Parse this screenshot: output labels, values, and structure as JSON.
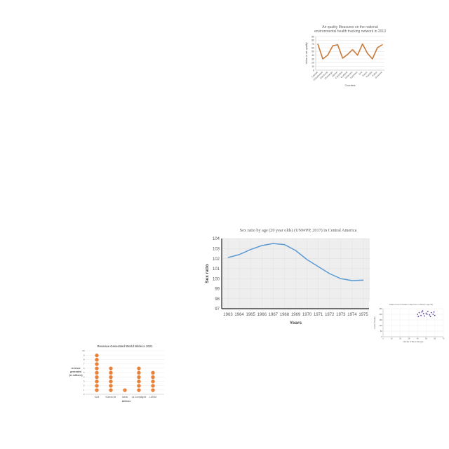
{
  "charts": {
    "air": {
      "chart_data": {
        "type": "line",
        "title_lines": [
          "Air quality Measures on the national",
          "environmental health tracking network in 2013"
        ],
        "xlabel": "Counties",
        "ylabel": "Value of air quality",
        "categories": [
          "Cayuga",
          "Chautauqua",
          "Chemung",
          "Chenango",
          "Clinton",
          "Columbia",
          "Cortland",
          "Delaware",
          "Dutchess",
          "Erie",
          "Essex",
          "Franklin",
          "Fulton",
          "Genesee"
        ],
        "values": [
          70,
          30,
          40,
          65,
          68,
          32,
          42,
          55,
          40,
          70,
          45,
          30,
          60,
          68
        ],
        "yticks": [
          "0",
          "10",
          "20",
          "30",
          "40",
          "50",
          "60",
          "70",
          "80",
          "90"
        ],
        "ylim": [
          0,
          90
        ],
        "color": "#c87a3a",
        "grid": true
      }
    },
    "sex": {
      "chart_data": {
        "type": "line",
        "title": "Sex ratio by age (20 year olds) (UNWPP, 2017) in Central America",
        "xlabel": "Years",
        "ylabel": "Sex ratio",
        "categories": [
          "1963",
          "1964",
          "1965",
          "1966",
          "1967",
          "1968",
          "1969",
          "1970",
          "1971",
          "1972",
          "1973",
          "1974",
          "1975"
        ],
        "values": [
          102.1,
          102.4,
          102.9,
          103.3,
          103.5,
          103.4,
          102.8,
          101.9,
          101.2,
          100.5,
          100.0,
          99.8,
          99.85
        ],
        "yticks": [
          "97",
          "98",
          "99",
          "100",
          "101",
          "102",
          "103",
          "104"
        ],
        "ylim": [
          97,
          104
        ],
        "color": "#5b9bd5",
        "plot_bg": "#eeeeee",
        "grid": true
      }
    },
    "scatter": {
      "chart_data": {
        "type": "scatter",
        "title": "Oldest count of bodies in files from in 2015 (in age 60)",
        "xlabel": "Number of files in file type",
        "ylabel": "Count of bodies",
        "xticks": [
          "0",
          "10",
          "20",
          "30",
          "40",
          "50",
          "60",
          "70"
        ],
        "yticks": [
          "0",
          "50",
          "100",
          "150",
          "200",
          "250"
        ],
        "xlim": [
          0,
          70
        ],
        "ylim": [
          0,
          250
        ],
        "x": [
          40,
          42,
          44,
          45,
          47,
          48,
          50,
          52,
          54,
          56,
          58,
          60,
          41,
          46,
          51,
          55,
          59
        ],
        "y": [
          200,
          215,
          190,
          220,
          205,
          185,
          210,
          225,
          195,
          215,
          200,
          190,
          180,
          230,
          200,
          180,
          220
        ],
        "color": "#5b3fa0",
        "grid": true
      }
    },
    "revenue": {
      "chart_data": {
        "type": "dot",
        "title": "Revenue Generated World Wide in 2021",
        "xlabel": "Airlines",
        "ylabel_lines": [
          "revenue",
          "generated",
          "(in millions)"
        ],
        "categories": [
          "KLM",
          "Korean Air",
          "Aviolo",
          "La Compagnie",
          "LATAM"
        ],
        "values": [
          9,
          6,
          1,
          6,
          5
        ],
        "yticks": [
          "0",
          "1",
          "2",
          "3",
          "4",
          "5",
          "6",
          "7",
          "8",
          "9",
          "10"
        ],
        "ylim": [
          0,
          10
        ],
        "color": "#e8823a",
        "grid": true
      }
    }
  }
}
